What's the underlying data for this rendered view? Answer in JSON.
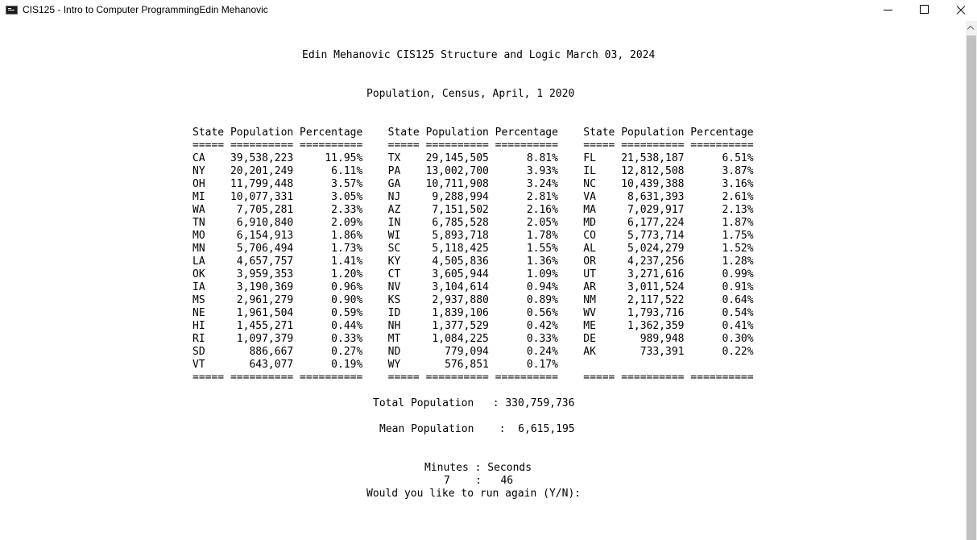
{
  "window": {
    "title": "CIS125 - Intro to Computer ProgrammingEdin Mehanovic"
  },
  "console": {
    "header": "Edin Mehanovic CIS125 Structure and Logic March 03, 2024",
    "subtitle": "Population, Census, April, 1 2020",
    "column_header": "State Population Percentage    State Population Percentage    State Population Percentage",
    "separator": "===== ========== ==========    ===== ========== ==========    ===== ========== ==========",
    "rows": [
      "CA    39,538,223     11.95%    TX    29,145,505      8.81%    FL    21,538,187      6.51%",
      "NY    20,201,249      6.11%    PA    13,002,700      3.93%    IL    12,812,508      3.87%",
      "OH    11,799,448      3.57%    GA    10,711,908      3.24%    NC    10,439,388      3.16%",
      "MI    10,077,331      3.05%    NJ     9,288,994      2.81%    VA     8,631,393      2.61%",
      "WA     7,705,281      2.33%    AZ     7,151,502      2.16%    MA     7,029,917      2.13%",
      "TN     6,910,840      2.09%    IN     6,785,528      2.05%    MD     6,177,224      1.87%",
      "MO     6,154,913      1.86%    WI     5,893,718      1.78%    CO     5,773,714      1.75%",
      "MN     5,706,494      1.73%    SC     5,118,425      1.55%    AL     5,024,279      1.52%",
      "LA     4,657,757      1.41%    KY     4,505,836      1.36%    OR     4,237,256      1.28%",
      "OK     3,959,353      1.20%    CT     3,605,944      1.09%    UT     3,271,616      0.99%",
      "IA     3,190,369      0.96%    NV     3,104,614      0.94%    AR     3,011,524      0.91%",
      "MS     2,961,279      0.90%    KS     2,937,880      0.89%    NM     2,117,522      0.64%",
      "NE     1,961,504      0.59%    ID     1,839,106      0.56%    WV     1,793,716      0.54%",
      "HI     1,455,271      0.44%    NH     1,377,529      0.42%    ME     1,362,359      0.41%",
      "RI     1,097,379      0.33%    MT     1,084,225      0.33%    DE       989,948      0.30%",
      "SD       886,667      0.27%    ND       779,094      0.24%    AK       733,391      0.22%",
      "VT       643,077      0.19%    WY       576,851      0.17%"
    ],
    "bottom_separator": "===== ========== ==========    ===== ========== ==========    ===== ========== ==========",
    "total_line": "Total Population   : 330,759,736",
    "mean_line": "Mean Population    :  6,615,195",
    "time_header": "Minutes : Seconds",
    "time_value": "7    :   46",
    "prompt": "Would you like to run again (Y/N):"
  }
}
